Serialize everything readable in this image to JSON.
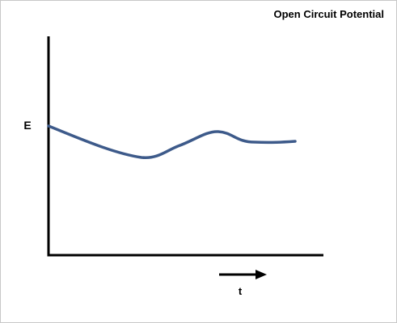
{
  "title": "Open Circuit Potential",
  "axes": {
    "y_label": "E",
    "x_label": "t"
  }
}
